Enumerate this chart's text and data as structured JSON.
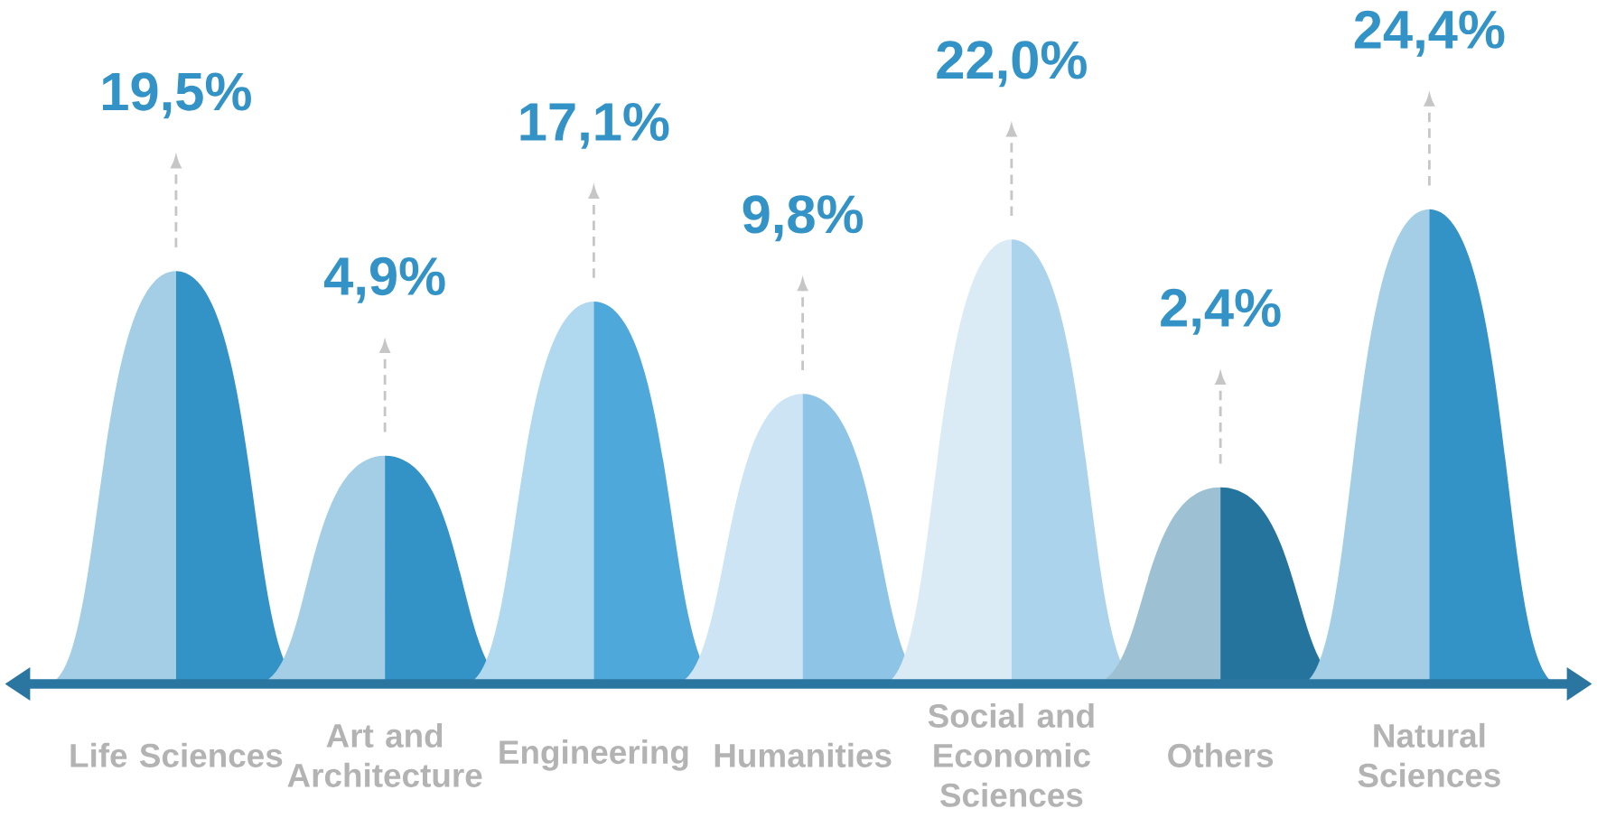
{
  "chart_data": {
    "type": "other",
    "categories": [
      "Life Sciences",
      "Art and Architecture",
      "Engineering",
      "Humanities",
      "Social and Economic Sciences",
      "Others",
      "Natural Sciences"
    ],
    "values": [
      19.5,
      4.9,
      17.1,
      9.8,
      22.0,
      2.4,
      24.4
    ],
    "value_labels": [
      "19,5%",
      "4,9%",
      "17,1%",
      "9,8%",
      "22,0%",
      "2,4%",
      "24,4%"
    ],
    "colors": [
      "#3393c6",
      "#3393c6",
      "#4fa8da",
      "#8ec4e6",
      "#acd3ec",
      "#25749e",
      "#3393c6"
    ]
  }
}
